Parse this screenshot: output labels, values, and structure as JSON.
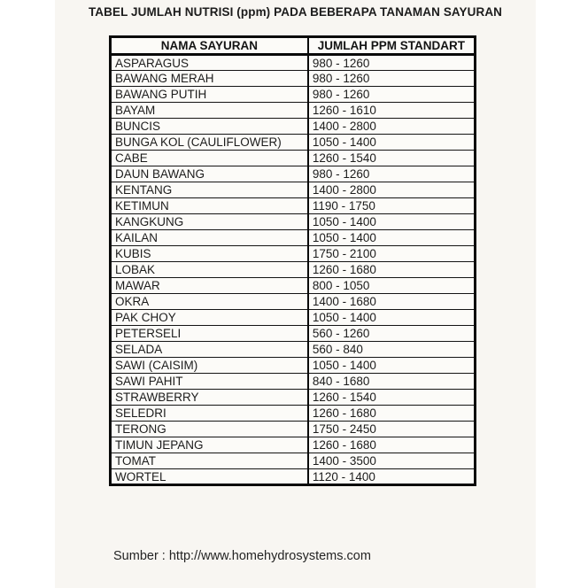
{
  "page": {
    "title": "TABEL JUMLAH NUTRISI (ppm) PADA BEBERAPA TANAMAN SAYURAN",
    "source": "Sumber : http://www.homehydrosystems.com"
  },
  "table": {
    "headers": {
      "name": "NAMA SAYURAN",
      "ppm": "JUMLAH PPM STANDART"
    },
    "rows": [
      {
        "name": "ASPARAGUS",
        "ppm": "980 - 1260"
      },
      {
        "name": "BAWANG MERAH",
        "ppm": "980 - 1260"
      },
      {
        "name": "BAWANG PUTIH",
        "ppm": "980 - 1260"
      },
      {
        "name": "BAYAM",
        "ppm": "1260 - 1610"
      },
      {
        "name": "BUNCIS",
        "ppm": "1400 - 2800"
      },
      {
        "name": "BUNGA KOL (CAULIFLOWER)",
        "ppm": "1050 - 1400"
      },
      {
        "name": "CABE",
        "ppm": "1260 - 1540"
      },
      {
        "name": "DAUN BAWANG",
        "ppm": "980 - 1260"
      },
      {
        "name": "KENTANG",
        "ppm": "1400 - 2800"
      },
      {
        "name": "KETIMUN",
        "ppm": "1190 - 1750"
      },
      {
        "name": "KANGKUNG",
        "ppm": "1050 - 1400"
      },
      {
        "name": "KAILAN",
        "ppm": "1050 - 1400"
      },
      {
        "name": "KUBIS",
        "ppm": "1750 - 2100"
      },
      {
        "name": "LOBAK",
        "ppm": "1260 - 1680"
      },
      {
        "name": "MAWAR",
        "ppm": "800 - 1050"
      },
      {
        "name": "OKRA",
        "ppm": "1400 - 1680"
      },
      {
        "name": "PAK CHOY",
        "ppm": "1050 - 1400"
      },
      {
        "name": "PETERSELI",
        "ppm": "560 - 1260"
      },
      {
        "name": "SELADA",
        "ppm": "560 - 840"
      },
      {
        "name": "SAWI (CAISIM)",
        "ppm": "1050 - 1400"
      },
      {
        "name": "SAWI PAHIT",
        "ppm": "840 - 1680"
      },
      {
        "name": "STRAWBERRY",
        "ppm": "1260 - 1540"
      },
      {
        "name": "SELEDRI",
        "ppm": "1260 - 1680"
      },
      {
        "name": "TERONG",
        "ppm": "1750 - 2450"
      },
      {
        "name": "TIMUN JEPANG",
        "ppm": "1260 - 1680"
      },
      {
        "name": "TOMAT",
        "ppm": "1400 - 3500"
      },
      {
        "name": "WORTEL",
        "ppm": "1120 - 1400"
      }
    ]
  },
  "colors": {
    "page_bg": "#f8f6f2",
    "margin_bg": "#ffffff",
    "border": "#0a0a0a",
    "text": "#1c1c1c"
  }
}
